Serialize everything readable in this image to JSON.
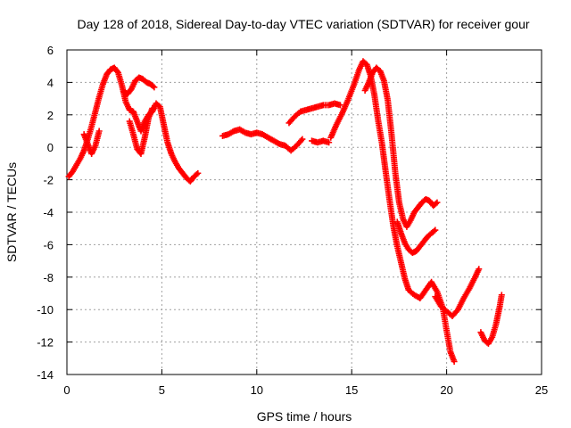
{
  "chart_data": {
    "type": "scatter",
    "title": "Day 128 of 2018, Sidereal Day-to-day VTEC variation (SDTVAR) for receiver gour",
    "xlabel": "GPS time / hours",
    "ylabel": "SDTVAR / TECUs",
    "xlim": [
      0,
      25
    ],
    "ylim": [
      -14,
      6
    ],
    "xticks": [
      0,
      5,
      10,
      15,
      20,
      25
    ],
    "yticks": [
      -14,
      -12,
      -10,
      -8,
      -6,
      -4,
      -2,
      0,
      2,
      4,
      6
    ],
    "grid": true,
    "marker": "+",
    "series_color": "#ff0000",
    "series": [
      {
        "name": "seg-1",
        "x": [
          0.1,
          0.3,
          0.5,
          0.7,
          0.9,
          1.1,
          1.3,
          1.5,
          1.7,
          1.9,
          2.1,
          2.3,
          2.5,
          2.7,
          2.9,
          3.1,
          3.3,
          3.5,
          3.7,
          3.9,
          4.1,
          4.3,
          4.5,
          4.7,
          4.9,
          5.1,
          5.3,
          5.5,
          5.7,
          5.9,
          6.1,
          6.3,
          6.5,
          6.7,
          6.9
        ],
        "y": [
          -1.8,
          -1.5,
          -1.1,
          -0.7,
          -0.2,
          0.5,
          1.3,
          2.2,
          3.1,
          3.9,
          4.5,
          4.8,
          4.9,
          4.6,
          3.8,
          2.8,
          2.3,
          2.2,
          1.6,
          1.0,
          1.6,
          2.0,
          2.2,
          2.7,
          2.5,
          1.4,
          0.3,
          -0.4,
          -0.9,
          -1.3,
          -1.6,
          -1.9,
          -2.1,
          -1.8,
          -1.6
        ]
      },
      {
        "name": "seg-1b",
        "x": [
          0.9,
          1.1,
          1.3,
          1.5,
          1.7
        ],
        "y": [
          0.8,
          0.2,
          -0.4,
          0.1,
          1.0
        ]
      },
      {
        "name": "seg-1c",
        "x": [
          3.3,
          3.5,
          3.7,
          3.9,
          4.1,
          4.3,
          4.5
        ],
        "y": [
          1.6,
          0.8,
          -0.1,
          -0.4,
          0.6,
          1.8,
          2.4
        ]
      },
      {
        "name": "seg-2",
        "x": [
          3.0,
          3.2,
          3.4,
          3.6,
          3.8,
          4.0,
          4.2,
          4.4,
          4.6
        ],
        "y": [
          3.4,
          3.3,
          3.6,
          4.1,
          4.3,
          4.2,
          4.0,
          3.9,
          3.7
        ]
      },
      {
        "name": "seg-3",
        "x": [
          8.2,
          8.5,
          8.8,
          9.1,
          9.4,
          9.7,
          10.0,
          10.3,
          10.6,
          10.9,
          11.2,
          11.5,
          11.8,
          12.1,
          12.4
        ],
        "y": [
          0.7,
          0.8,
          1.0,
          1.1,
          0.9,
          0.8,
          0.9,
          0.8,
          0.6,
          0.4,
          0.2,
          0.1,
          -0.2,
          0.1,
          0.5
        ]
      },
      {
        "name": "seg-4",
        "x": [
          11.7,
          12.0,
          12.3,
          12.6,
          12.9,
          13.2,
          13.5,
          13.8,
          14.1,
          14.4
        ],
        "y": [
          1.5,
          1.9,
          2.2,
          2.3,
          2.4,
          2.5,
          2.6,
          2.6,
          2.7,
          2.6
        ]
      },
      {
        "name": "seg-5",
        "x": [
          12.9,
          13.2,
          13.5,
          13.8
        ],
        "y": [
          0.4,
          0.3,
          0.4,
          0.3
        ]
      },
      {
        "name": "seg-6",
        "x": [
          13.9,
          14.2,
          14.5,
          14.8,
          15.1,
          15.4,
          15.6,
          15.8,
          16.0,
          16.2,
          16.4,
          16.6,
          16.8,
          17.0,
          17.2,
          17.4,
          17.6,
          17.8,
          18.0,
          18.3,
          18.6,
          18.9,
          19.2,
          19.5,
          19.8,
          20.0,
          20.2,
          20.4
        ],
        "y": [
          0.6,
          1.4,
          2.1,
          2.9,
          3.8,
          4.8,
          5.3,
          5.1,
          4.4,
          3.2,
          1.6,
          0.2,
          -1.6,
          -3.3,
          -4.9,
          -6.1,
          -7.1,
          -8.1,
          -8.8,
          -9.1,
          -9.3,
          -8.8,
          -8.3,
          -8.9,
          -9.9,
          -11.3,
          -12.6,
          -13.2
        ]
      },
      {
        "name": "seg-7",
        "x": [
          15.7,
          15.9,
          16.1,
          16.3,
          16.5,
          16.7,
          16.9,
          17.1,
          17.3,
          17.5,
          17.7,
          17.9,
          18.1,
          18.3,
          18.5,
          18.7,
          18.9,
          19.1,
          19.3,
          19.5
        ],
        "y": [
          3.5,
          4.0,
          4.6,
          4.9,
          4.7,
          4.1,
          2.9,
          0.8,
          -1.6,
          -3.4,
          -4.4,
          -4.9,
          -4.5,
          -4.0,
          -3.7,
          -3.4,
          -3.2,
          -3.3,
          -3.6,
          -3.4
        ]
      },
      {
        "name": "seg-8",
        "x": [
          17.4,
          17.6,
          17.8,
          18.0,
          18.2,
          18.4,
          18.6,
          18.8,
          19.0,
          19.2,
          19.4
        ],
        "y": [
          -4.6,
          -5.3,
          -5.9,
          -6.3,
          -6.5,
          -6.4,
          -6.1,
          -5.8,
          -5.5,
          -5.3,
          -5.1
        ]
      },
      {
        "name": "seg-9",
        "x": [
          19.4,
          19.7,
          20.0,
          20.3,
          20.6,
          20.9,
          21.2,
          21.5,
          21.7
        ],
        "y": [
          -9.2,
          -9.8,
          -10.1,
          -10.4,
          -10.0,
          -9.3,
          -8.7,
          -8.0,
          -7.5
        ]
      },
      {
        "name": "seg-10",
        "x": [
          21.8,
          22.0,
          22.2,
          22.4,
          22.6,
          22.8,
          22.9
        ],
        "y": [
          -11.4,
          -11.9,
          -12.1,
          -11.7,
          -10.9,
          -9.8,
          -9.1
        ]
      }
    ]
  }
}
